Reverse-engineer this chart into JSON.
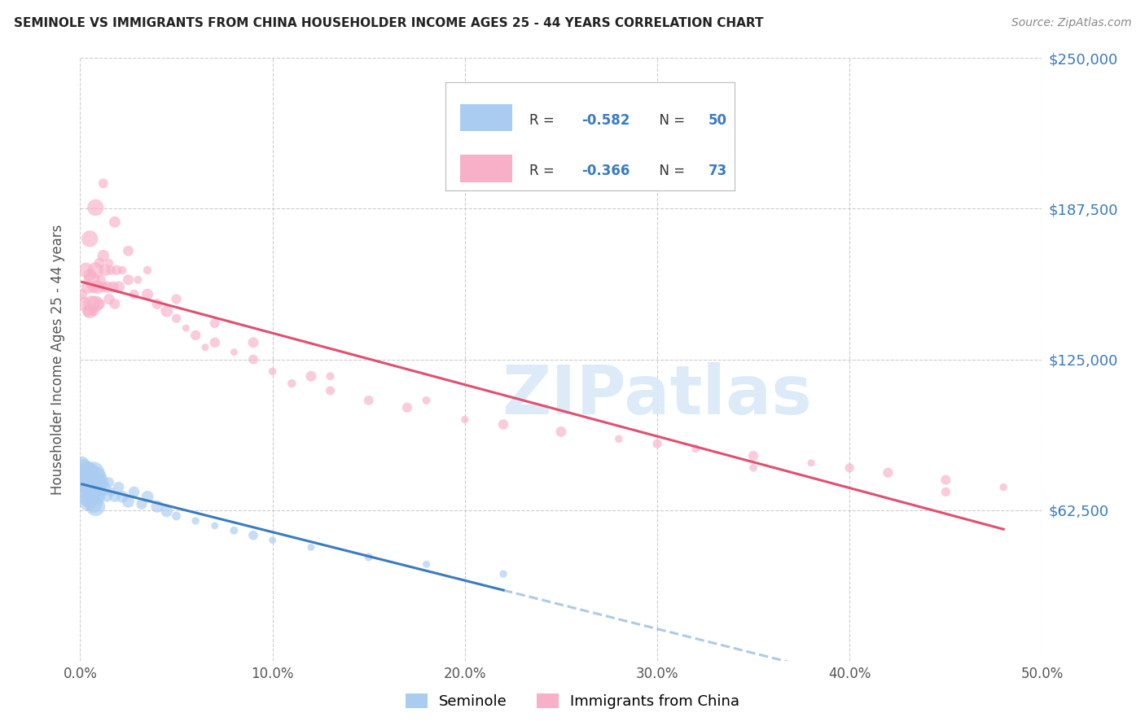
{
  "title": "SEMINOLE VS IMMIGRANTS FROM CHINA HOUSEHOLDER INCOME AGES 25 - 44 YEARS CORRELATION CHART",
  "source": "Source: ZipAtlas.com",
  "ylabel": "Householder Income Ages 25 - 44 years",
  "xlim": [
    0.0,
    0.5
  ],
  "ylim": [
    0,
    250000
  ],
  "yticks": [
    0,
    62500,
    125000,
    187500,
    250000
  ],
  "ytick_labels": [
    "",
    "$62,500",
    "$125,000",
    "$187,500",
    "$250,000"
  ],
  "xtick_vals": [
    0.0,
    0.1,
    0.2,
    0.3,
    0.4,
    0.5
  ],
  "xtick_labels": [
    "0.0%",
    "10.0%",
    "20.0%",
    "30.0%",
    "40.0%",
    "50.0%"
  ],
  "series1_color": "#aaccf0",
  "series2_color": "#f8b0c8",
  "line1_color": "#3a7bbf",
  "line2_color": "#e05070",
  "r_n_color": "#3a7bbf",
  "label_color": "#333333",
  "watermark": "ZIPatlas",
  "blue_x": [
    0.001,
    0.001,
    0.002,
    0.002,
    0.003,
    0.003,
    0.003,
    0.004,
    0.004,
    0.004,
    0.005,
    0.005,
    0.005,
    0.006,
    0.006,
    0.007,
    0.007,
    0.007,
    0.008,
    0.008,
    0.008,
    0.009,
    0.009,
    0.01,
    0.01,
    0.011,
    0.012,
    0.013,
    0.014,
    0.015,
    0.016,
    0.018,
    0.02,
    0.022,
    0.025,
    0.028,
    0.032,
    0.035,
    0.04,
    0.045,
    0.05,
    0.06,
    0.07,
    0.08,
    0.09,
    0.1,
    0.12,
    0.15,
    0.18,
    0.22
  ],
  "blue_y": [
    82000,
    76000,
    80000,
    72000,
    78000,
    74000,
    68000,
    80000,
    72000,
    66000,
    78000,
    73000,
    67000,
    76000,
    70000,
    78000,
    72000,
    65000,
    76000,
    70000,
    64000,
    74000,
    68000,
    75000,
    69000,
    73000,
    70000,
    72000,
    68000,
    74000,
    70000,
    68000,
    72000,
    68000,
    66000,
    70000,
    65000,
    68000,
    64000,
    62000,
    60000,
    58000,
    56000,
    54000,
    52000,
    50000,
    47000,
    43000,
    40000,
    36000
  ],
  "pink_x": [
    0.001,
    0.002,
    0.003,
    0.004,
    0.004,
    0.005,
    0.005,
    0.006,
    0.006,
    0.007,
    0.007,
    0.008,
    0.008,
    0.009,
    0.01,
    0.01,
    0.011,
    0.012,
    0.012,
    0.013,
    0.014,
    0.015,
    0.015,
    0.016,
    0.017,
    0.018,
    0.019,
    0.02,
    0.022,
    0.025,
    0.028,
    0.03,
    0.035,
    0.04,
    0.045,
    0.05,
    0.055,
    0.06,
    0.065,
    0.07,
    0.08,
    0.09,
    0.1,
    0.11,
    0.12,
    0.13,
    0.15,
    0.17,
    0.2,
    0.22,
    0.25,
    0.28,
    0.3,
    0.32,
    0.35,
    0.38,
    0.4,
    0.42,
    0.45,
    0.48,
    0.005,
    0.008,
    0.012,
    0.018,
    0.025,
    0.035,
    0.05,
    0.07,
    0.09,
    0.13,
    0.18,
    0.35,
    0.45
  ],
  "pink_y": [
    152000,
    148000,
    162000,
    155000,
    145000,
    160000,
    145000,
    158000,
    148000,
    155000,
    145000,
    162000,
    148000,
    155000,
    165000,
    148000,
    158000,
    168000,
    155000,
    162000,
    155000,
    165000,
    150000,
    162000,
    155000,
    148000,
    162000,
    155000,
    162000,
    158000,
    152000,
    158000,
    152000,
    148000,
    145000,
    142000,
    138000,
    135000,
    130000,
    132000,
    128000,
    125000,
    120000,
    115000,
    118000,
    112000,
    108000,
    105000,
    100000,
    98000,
    95000,
    92000,
    90000,
    88000,
    85000,
    82000,
    80000,
    78000,
    75000,
    72000,
    175000,
    188000,
    198000,
    182000,
    170000,
    162000,
    150000,
    140000,
    132000,
    118000,
    108000,
    80000,
    70000
  ]
}
